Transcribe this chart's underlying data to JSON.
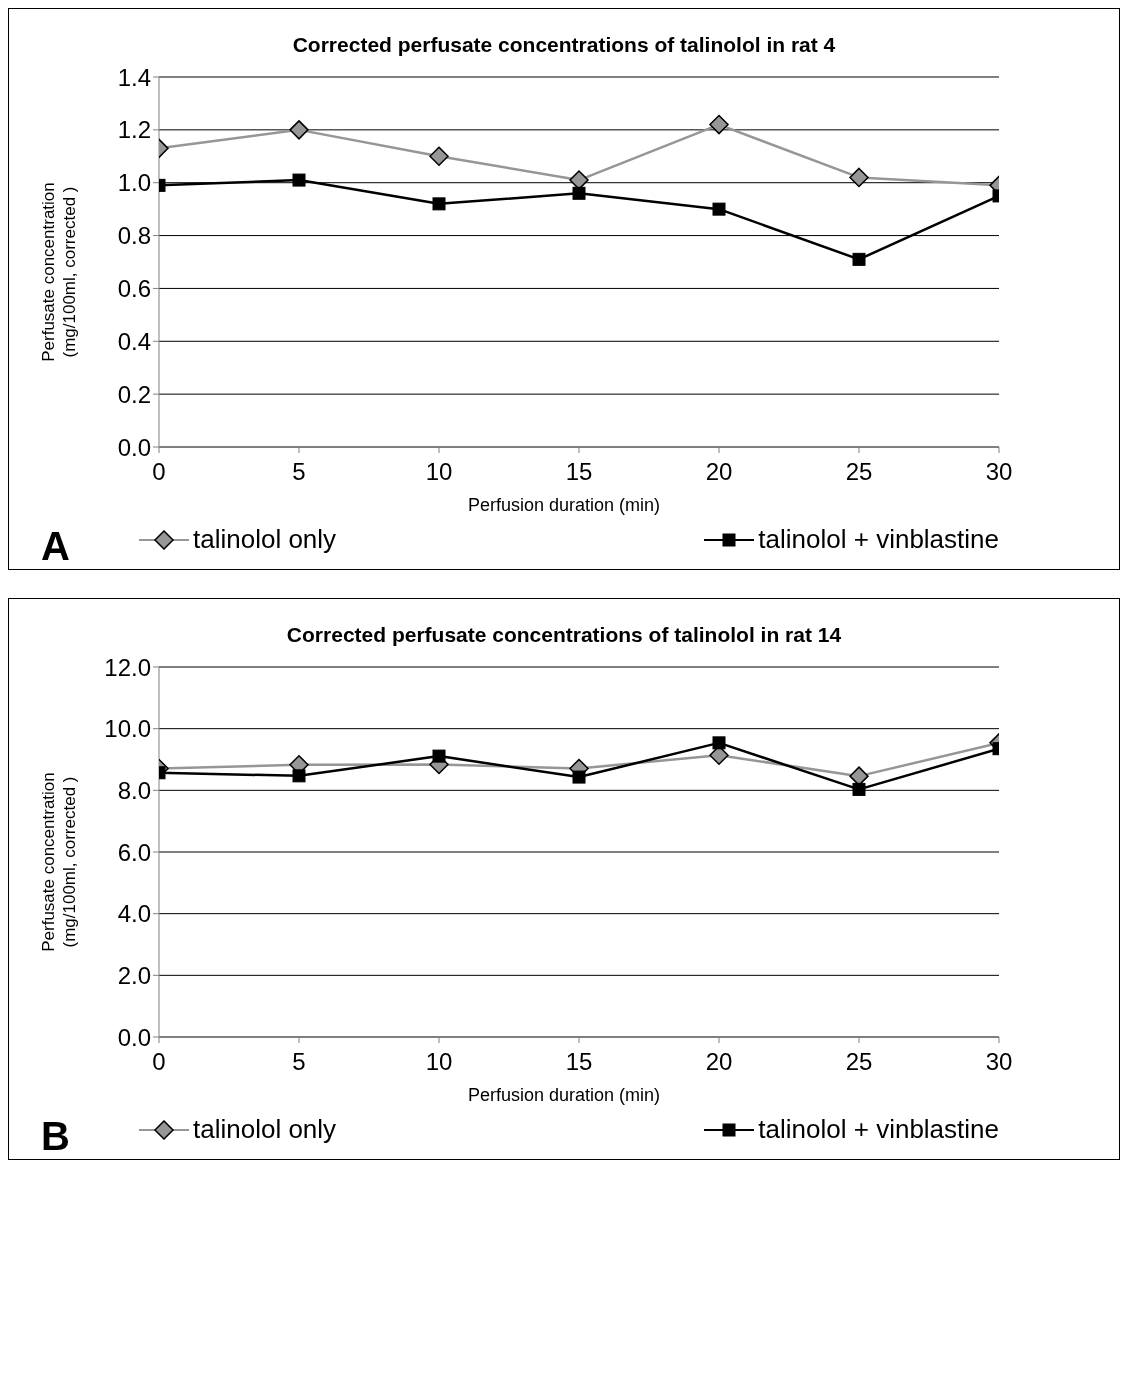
{
  "chart_data": [
    {
      "type": "line",
      "title": "Corrected perfusate concentrations of talinolol in rat 4",
      "xlabel": "Perfusion duration (min)",
      "ylabel": "Perfusate concentration\n(mg/100ml, corrected )",
      "annotations": [
        "A"
      ],
      "x": [
        0,
        5,
        10,
        15,
        20,
        25,
        30
      ],
      "xlim": [
        0,
        30
      ],
      "xticks": [
        0,
        5,
        10,
        15,
        20,
        25,
        30
      ],
      "ylim": [
        0,
        1.4
      ],
      "yticks": [
        {
          "value": 0,
          "label": "0.0"
        },
        {
          "value": 0.2,
          "label": "0.2"
        },
        {
          "value": 0.4,
          "label": "0.4"
        },
        {
          "value": 0.6,
          "label": "0.6"
        },
        {
          "value": 0.8,
          "label": "0.8"
        },
        {
          "value": 1,
          "label": "1.0"
        },
        {
          "value": 1.2,
          "label": "1.2"
        },
        {
          "value": 1.4,
          "label": "1.4"
        }
      ],
      "grid": "y",
      "legend": "bottom",
      "series": [
        {
          "name": "talinolol only",
          "color": "#969696",
          "marker": "diamond",
          "values": [
            1.13,
            1.2,
            1.1,
            1.01,
            1.22,
            1.02,
            0.99
          ]
        },
        {
          "name": "talinolol + vinblastine",
          "color": "#000000",
          "marker": "square",
          "values": [
            0.99,
            1.01,
            0.92,
            0.96,
            0.9,
            0.71,
            0.95
          ]
        }
      ]
    },
    {
      "type": "line",
      "title": "Corrected perfusate concentrations of talinolol in rat 14",
      "xlabel": "Perfusion duration (min)",
      "ylabel": "Perfusate concentration\n(mg/100ml, corrected )",
      "annotations": [
        "B"
      ],
      "x": [
        0,
        5,
        10,
        15,
        20,
        25,
        30
      ],
      "xlim": [
        0,
        30
      ],
      "xticks": [
        0,
        5,
        10,
        15,
        20,
        25,
        30
      ],
      "ylim": [
        0,
        12
      ],
      "yticks": [
        {
          "value": 0,
          "label": "0.0"
        },
        {
          "value": 2,
          "label": "2.0"
        },
        {
          "value": 4,
          "label": "4.0"
        },
        {
          "value": 6,
          "label": "6.0"
        },
        {
          "value": 8,
          "label": "8.0"
        },
        {
          "value": 10,
          "label": "10.0"
        },
        {
          "value": 12,
          "label": "12.0"
        }
      ],
      "grid": "y",
      "legend": "bottom",
      "series": [
        {
          "name": "talinolol only",
          "color": "#969696",
          "marker": "diamond",
          "values": [
            8.71,
            8.83,
            8.84,
            8.71,
            9.14,
            8.46,
            9.54
          ]
        },
        {
          "name": "talinolol + vinblastine",
          "color": "#000000",
          "marker": "square",
          "values": [
            8.57,
            8.47,
            9.11,
            8.43,
            9.54,
            8.03,
            9.35
          ]
        }
      ]
    }
  ]
}
